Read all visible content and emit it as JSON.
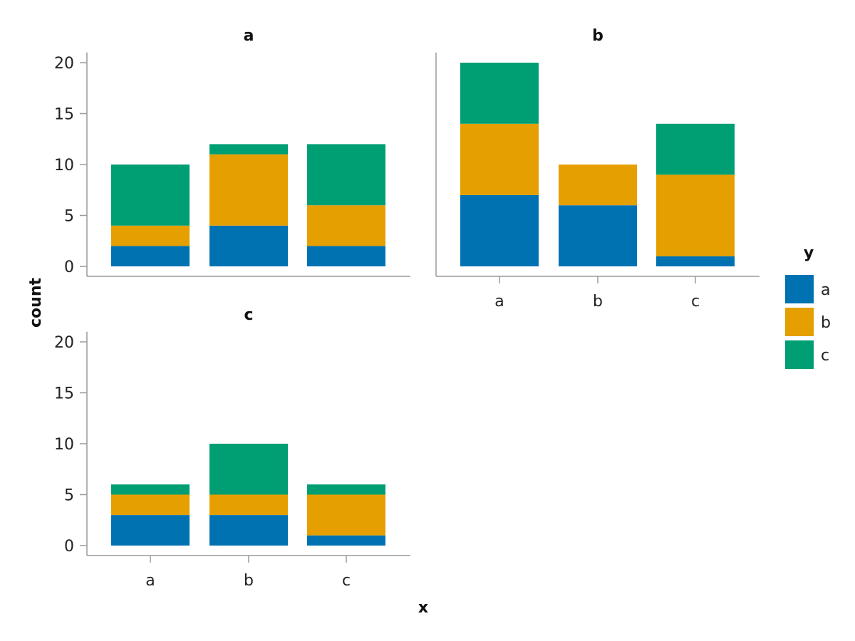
{
  "chart_data": {
    "type": "bar",
    "stacked": true,
    "xlabel": "x",
    "ylabel": "count",
    "ylim": [
      0,
      21
    ],
    "yticks": [
      0,
      5,
      10,
      15,
      20
    ],
    "categories": [
      "a",
      "b",
      "c"
    ],
    "legend": {
      "title": "y",
      "placement": "right",
      "entries": [
        {
          "label": "a",
          "color": "#0072B2"
        },
        {
          "label": "b",
          "color": "#E69F00"
        },
        {
          "label": "c",
          "color": "#009E73"
        }
      ]
    },
    "panels": [
      {
        "title": "a",
        "series": [
          {
            "name": "a",
            "values": [
              2,
              4,
              2
            ]
          },
          {
            "name": "b",
            "values": [
              2,
              7,
              4
            ]
          },
          {
            "name": "c",
            "values": [
              6,
              1,
              6
            ]
          }
        ]
      },
      {
        "title": "b",
        "series": [
          {
            "name": "a",
            "values": [
              7,
              6,
              1
            ]
          },
          {
            "name": "b",
            "values": [
              7,
              4,
              8
            ]
          },
          {
            "name": "c",
            "values": [
              6,
              0,
              5
            ]
          }
        ]
      },
      {
        "title": "c",
        "series": [
          {
            "name": "a",
            "values": [
              3,
              3,
              1
            ]
          },
          {
            "name": "b",
            "values": [
              2,
              2,
              4
            ]
          },
          {
            "name": "c",
            "values": [
              1,
              5,
              1
            ]
          }
        ]
      }
    ]
  }
}
